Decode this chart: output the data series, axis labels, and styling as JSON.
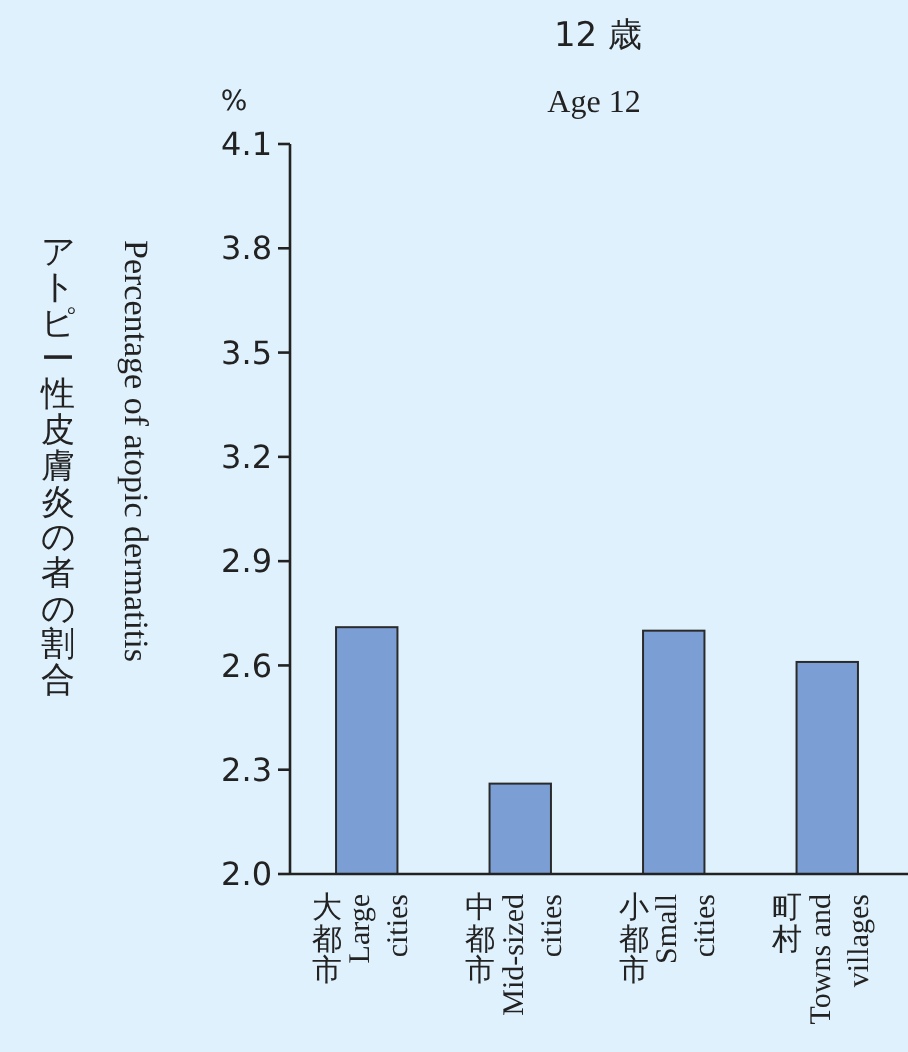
{
  "chart_data": {
    "type": "bar",
    "title": "12 歳",
    "subtitle": "Age 12",
    "ylabel": "アトピー性皮膚炎の者の割合\nPercentage of atopic dermatitis",
    "annotations": [
      "%"
    ],
    "categories": [
      "大都市\nLarge\ncities",
      "中都市\nMid-sized\ncities",
      "小都市\nSmall\ncities",
      "町村\nTowns and\nvillages"
    ],
    "values": [
      2.71,
      2.26,
      2.7,
      2.61
    ],
    "color": "#7b9fd4",
    "ylim": [
      2.0,
      4.1
    ],
    "yticks": [
      {
        "value": 2.0,
        "label": "2.0"
      },
      2.3,
      2.6,
      2.9,
      3.2,
      3.5,
      3.8,
      4.1
    ],
    "grid": false
  }
}
